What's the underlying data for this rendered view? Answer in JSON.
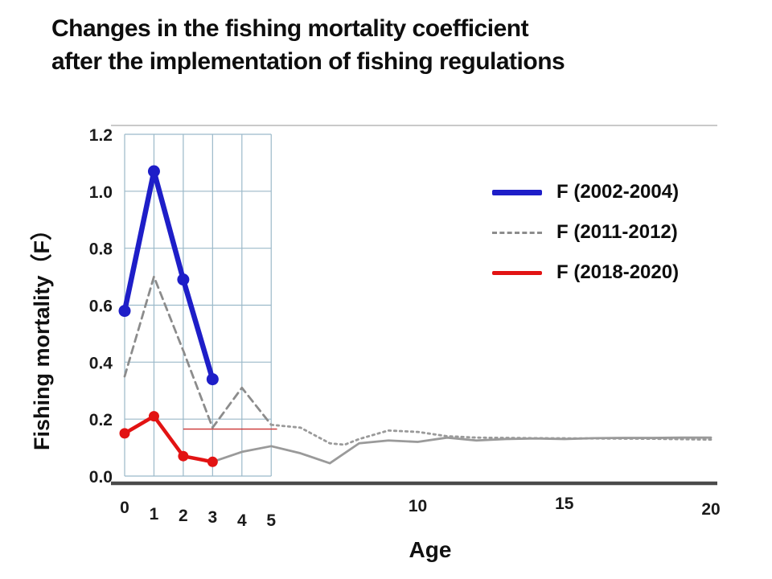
{
  "title": {
    "line1": "Changes in the fishing mortality coefficient",
    "line2": "after the implementation of fishing regulations"
  },
  "legend": {
    "items": [
      {
        "label": "F (2002-2004)",
        "color": "#1e1ec8",
        "style": "solid",
        "thickness": 7
      },
      {
        "label": "F (2011-2012)",
        "color": "#8c8c8c",
        "style": "dashed",
        "thickness": 3
      },
      {
        "label": "F (2018-2020)",
        "color": "#e21313",
        "style": "solid",
        "thickness": 5
      }
    ]
  },
  "chart_data": {
    "type": "line",
    "title": "Changes in the fishing mortality coefficient after the implementation of fishing regulations",
    "xlabel": "Age",
    "ylabel": "Fishing mortality（F）",
    "xlim": [
      0,
      20
    ],
    "ylim": [
      0,
      1.2
    ],
    "x_ticks": [
      0,
      1,
      2,
      3,
      4,
      5,
      10,
      15,
      20
    ],
    "x_tick_labels": [
      "0",
      "1",
      "2",
      "3",
      "4",
      "5",
      "10",
      "15",
      "20"
    ],
    "y_ticks": [
      0.0,
      0.2,
      0.4,
      0.6,
      0.8,
      1.0,
      1.2
    ],
    "y_tick_labels": [
      "0.0",
      "0.2",
      "0.4",
      "0.6",
      "0.8",
      "1.0",
      "1.2"
    ],
    "grid": {
      "note": "grid box only over ages 0-5, values 0-1.2",
      "x_range": [
        0,
        5
      ],
      "y_range": [
        0,
        1.2
      ],
      "color": "#9bb9c9"
    },
    "legend_position": "upper right",
    "reference_line": {
      "y": 0.165,
      "x": [
        2,
        5.2
      ],
      "color": "#cc3333"
    },
    "series": [
      {
        "name": "F (2011-2012)",
        "color": "#8c8c8c",
        "style": "dashed",
        "width": 2.8,
        "x": [
          0,
          1,
          2,
          3,
          4,
          5
        ],
        "y": [
          0.35,
          0.7,
          0.44,
          0.17,
          0.31,
          0.18
        ]
      },
      {
        "name": "F (2011-2012) continuation dotted",
        "color": "#9a9a9a",
        "style": "dotted",
        "width": 2.8,
        "x": [
          5,
          6,
          7,
          7.5,
          8,
          9,
          10,
          11,
          12,
          14,
          16,
          18,
          20
        ],
        "y": [
          0.18,
          0.17,
          0.115,
          0.11,
          0.13,
          0.16,
          0.155,
          0.14,
          0.135,
          0.133,
          0.132,
          0.131,
          0.128
        ]
      },
      {
        "name": "older-age continuation solid",
        "color": "#9a9a9a",
        "style": "solid",
        "width": 2.8,
        "x": [
          3,
          4,
          5,
          6,
          7,
          8,
          9,
          10,
          11,
          12,
          13,
          14,
          15,
          16,
          17,
          18,
          19,
          20
        ],
        "y": [
          0.05,
          0.085,
          0.105,
          0.08,
          0.045,
          0.115,
          0.125,
          0.12,
          0.135,
          0.125,
          0.13,
          0.132,
          0.13,
          0.133,
          0.134,
          0.134,
          0.135,
          0.135
        ]
      },
      {
        "name": "F (2002-2004)",
        "color": "#1e1ec8",
        "style": "solid",
        "width": 6.5,
        "marker_r": 7.5,
        "x": [
          0,
          1,
          2,
          3
        ],
        "y": [
          0.58,
          1.07,
          0.69,
          0.34
        ]
      },
      {
        "name": "F (2018-2020)",
        "color": "#e21313",
        "style": "solid",
        "width": 4.5,
        "marker_r": 6.5,
        "x": [
          0,
          1,
          2,
          3
        ],
        "y": [
          0.15,
          0.21,
          0.07,
          0.05
        ]
      }
    ]
  }
}
